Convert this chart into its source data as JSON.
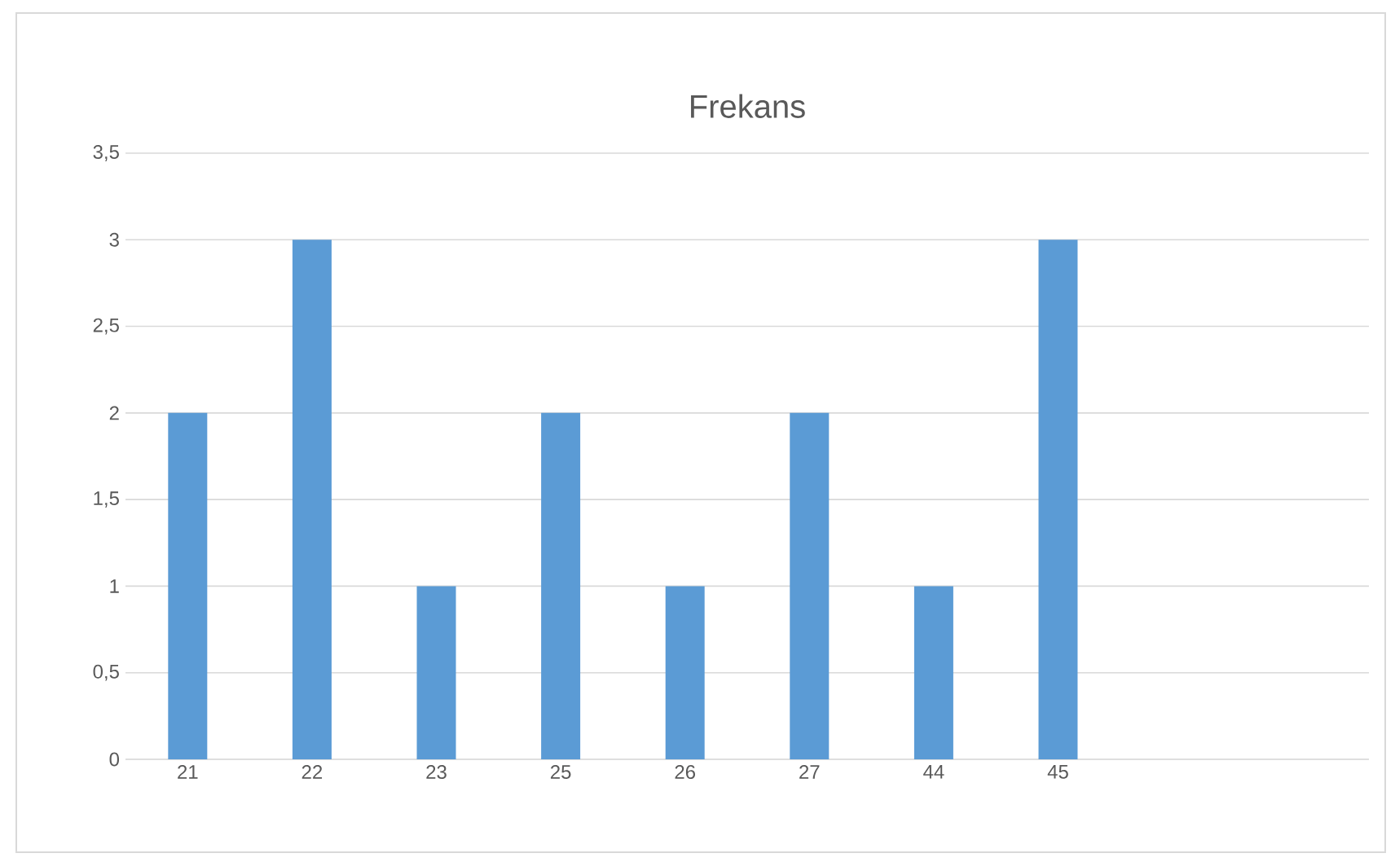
{
  "chart_data": {
    "type": "bar",
    "title": "Frekans",
    "categories": [
      "21",
      "22",
      "23",
      "25",
      "26",
      "27",
      "44",
      "45",
      null,
      null
    ],
    "values": [
      2,
      3,
      1,
      2,
      1,
      2,
      1,
      3,
      null,
      null
    ],
    "color": "#5b9bd5",
    "ylim": [
      0,
      3.5
    ],
    "yticks": [
      0,
      {
        "value": 0.5,
        "label": "0,5"
      },
      1,
      {
        "value": 1.5,
        "label": "1,5"
      },
      2,
      {
        "value": 2.5,
        "label": "2,5"
      },
      3,
      {
        "value": 3.5,
        "label": "3,5"
      }
    ],
    "grid": "y"
  }
}
